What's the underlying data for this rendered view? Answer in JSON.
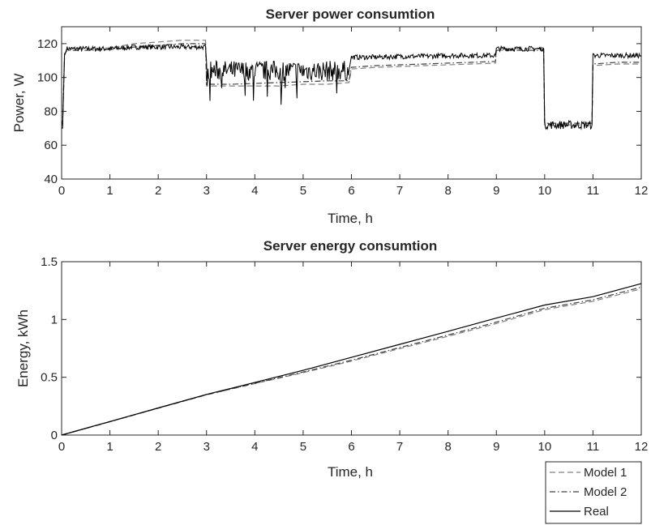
{
  "chart_data": [
    {
      "type": "line",
      "title": "Server power consumtion",
      "xlabel": "Time, h",
      "ylabel": "Power, W",
      "xlim": [
        0,
        12
      ],
      "ylim": [
        40,
        130
      ],
      "xticks": [
        "0",
        "1",
        "2",
        "3",
        "4",
        "5",
        "6",
        "7",
        "8",
        "9",
        "10",
        "11",
        "12"
      ],
      "yticks": [
        "40",
        "60",
        "80",
        "100",
        "120"
      ],
      "series": [
        {
          "name": "Model 1",
          "style": "dashed",
          "color": "#808080",
          "x": [
            0,
            0.02,
            0.06,
            0.1,
            0.5,
            1.0,
            1.5,
            2.0,
            2.5,
            2.98,
            3.0,
            3.5,
            4.0,
            4.5,
            5.0,
            5.5,
            5.95,
            6.0,
            6.5,
            7.0,
            7.5,
            8.0,
            8.5,
            8.98,
            9.0,
            9.5,
            9.98,
            10.0,
            10.5,
            10.98,
            11.0,
            11.5,
            12.0
          ],
          "y": [
            72,
            72,
            112,
            117,
            117,
            117.5,
            120,
            121,
            122,
            122,
            95,
            95,
            95,
            95,
            96,
            96,
            97,
            105,
            106,
            106.5,
            107,
            107.5,
            108,
            108.5,
            117,
            117,
            117,
            72,
            72,
            72,
            107,
            108,
            108
          ]
        },
        {
          "name": "Model 2",
          "style": "dashdot",
          "color": "#404040",
          "x": [
            0,
            0.02,
            0.06,
            0.1,
            0.5,
            1.0,
            1.5,
            2.0,
            2.5,
            2.98,
            3.0,
            3.5,
            4.0,
            4.5,
            5.0,
            5.5,
            5.95,
            6.0,
            6.5,
            7.0,
            7.5,
            8.0,
            8.5,
            8.98,
            9.0,
            9.5,
            9.98,
            10.0,
            10.5,
            10.98,
            11.0,
            11.5,
            12.0
          ],
          "y": [
            72,
            72,
            113,
            116,
            116,
            116.5,
            118,
            119,
            120,
            120,
            96,
            96,
            96.5,
            97,
            97.5,
            98,
            98,
            106,
            107,
            107.5,
            108,
            108.5,
            109,
            109.5,
            116,
            116,
            116,
            73,
            73,
            73,
            108,
            109,
            109
          ]
        },
        {
          "name": "Real",
          "style": "solid",
          "color": "#000000",
          "noisy": true,
          "x": [
            0,
            0.02,
            0.06,
            0.1,
            0.5,
            1.0,
            1.5,
            2.0,
            2.5,
            2.98,
            3.0,
            3.5,
            4.0,
            4.5,
            5.0,
            5.5,
            5.95,
            6.0,
            6.5,
            7.0,
            7.5,
            8.0,
            8.5,
            8.98,
            9.0,
            9.5,
            9.98,
            10.0,
            10.5,
            10.98,
            11.0,
            11.5,
            12.0
          ],
          "y": [
            70,
            70,
            114,
            117,
            117,
            117,
            118,
            118,
            118,
            118,
            104,
            104,
            104,
            104,
            104,
            104,
            104,
            112,
            112,
            112.5,
            112.5,
            113,
            113,
            113,
            117,
            117,
            117,
            72,
            72,
            72,
            113,
            113,
            113
          ]
        }
      ]
    },
    {
      "type": "line",
      "title": "Server energy consumtion",
      "xlabel": "Time, h",
      "ylabel": "Energy, kWh",
      "xlim": [
        0,
        12
      ],
      "ylim": [
        0,
        1.5
      ],
      "xticks": [
        "0",
        "1",
        "2",
        "3",
        "4",
        "5",
        "6",
        "7",
        "8",
        "9",
        "10",
        "11",
        "12"
      ],
      "yticks": [
        "0",
        "0.5",
        "1",
        "1.5"
      ],
      "legend_position": "bottom-right",
      "series": [
        {
          "name": "Model 1",
          "style": "dashed",
          "color": "#808080",
          "x": [
            0,
            1,
            2,
            3,
            4,
            5,
            6,
            7,
            8,
            9,
            10,
            11,
            12
          ],
          "y": [
            0,
            0.115,
            0.232,
            0.348,
            0.445,
            0.54,
            0.64,
            0.748,
            0.855,
            0.965,
            1.085,
            1.157,
            1.265
          ]
        },
        {
          "name": "Model 2",
          "style": "dashdot",
          "color": "#404040",
          "x": [
            0,
            1,
            2,
            3,
            4,
            5,
            6,
            7,
            8,
            9,
            10,
            11,
            12
          ],
          "y": [
            0,
            0.116,
            0.234,
            0.35,
            0.448,
            0.545,
            0.648,
            0.757,
            0.866,
            0.977,
            1.097,
            1.17,
            1.28
          ]
        },
        {
          "name": "Real",
          "style": "solid",
          "color": "#000000",
          "x": [
            0,
            1,
            2,
            3,
            4,
            5,
            6,
            7,
            8,
            9,
            10,
            11,
            12
          ],
          "y": [
            0,
            0.117,
            0.235,
            0.352,
            0.455,
            0.56,
            0.672,
            0.785,
            0.898,
            1.012,
            1.125,
            1.197,
            1.31
          ]
        }
      ]
    }
  ]
}
